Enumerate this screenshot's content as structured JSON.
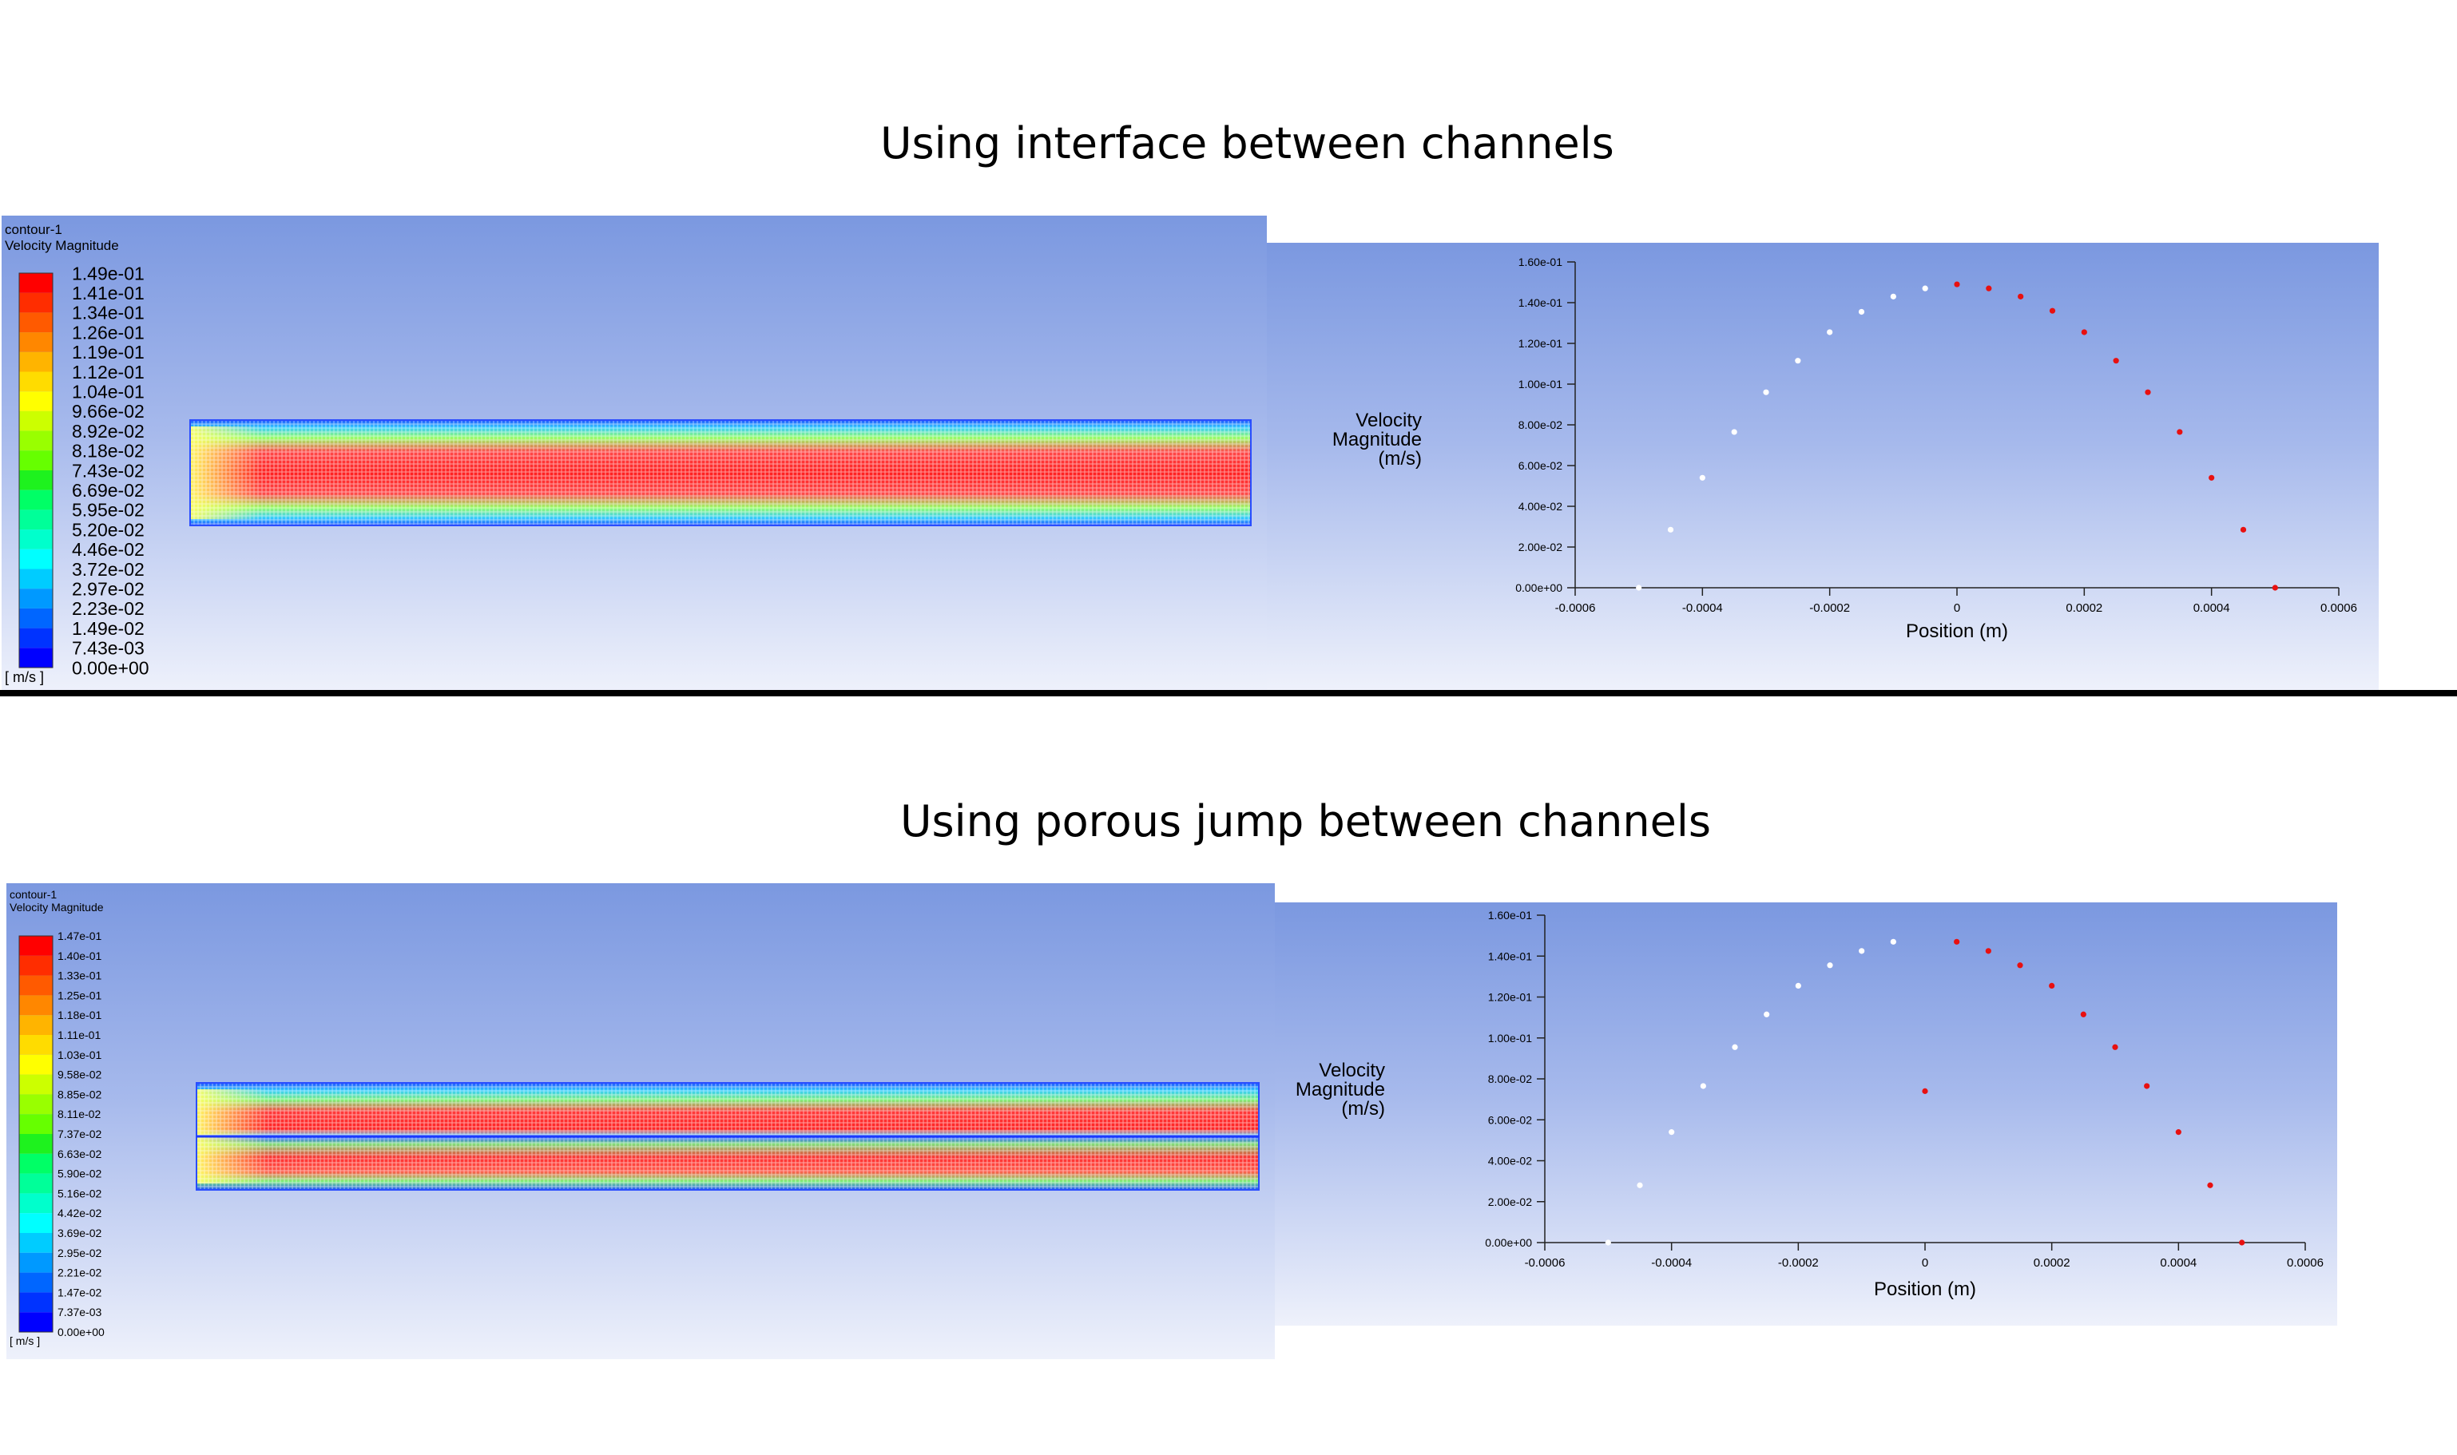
{
  "sections": [
    {
      "title": "Using interface between channels",
      "contour": {
        "title": "contour-1",
        "variable": "Velocity Magnitude",
        "unit": "[ m/s ]",
        "levels": [
          "1.49e-01",
          "1.41e-01",
          "1.34e-01",
          "1.26e-01",
          "1.19e-01",
          "1.12e-01",
          "1.04e-01",
          "9.66e-02",
          "8.92e-02",
          "8.18e-02",
          "7.43e-02",
          "6.69e-02",
          "5.95e-02",
          "5.20e-02",
          "4.46e-02",
          "3.72e-02",
          "2.97e-02",
          "2.23e-02",
          "1.49e-02",
          "7.43e-03",
          "0.00e+00"
        ],
        "split_channel": false
      },
      "chart_data": {
        "type": "scatter",
        "xlabel": "Position (m)",
        "ylabel": "Velocity Magnitude (m/s)",
        "xlim": [
          -0.0006,
          0.0006
        ],
        "ylim": [
          0,
          0.16
        ],
        "x_ticks": [
          "-0.0006",
          "-0.0004",
          "-0.0002",
          "0",
          "0.0002",
          "0.0004",
          "0.0006"
        ],
        "y_ticks": [
          "0.00e+00",
          "2.00e-02",
          "4.00e-02",
          "6.00e-02",
          "8.00e-02",
          "1.00e-01",
          "1.20e-01",
          "1.40e-01",
          "1.60e-01"
        ],
        "series": [
          {
            "color": "#ffffff",
            "x": [
              -0.0005,
              -0.00045,
              -0.0004,
              -0.00035,
              -0.0003,
              -0.00025,
              -0.0002,
              -0.00015,
              -0.0001,
              -5e-05
            ],
            "y": [
              0.0,
              0.0285,
              0.054,
              0.0765,
              0.096,
              0.1115,
              0.1255,
              0.1355,
              0.143,
              0.147
            ]
          },
          {
            "color": "#e81010",
            "x": [
              0,
              5e-05,
              0.0001,
              0.00015,
              0.0002,
              0.00025,
              0.0003,
              0.00035,
              0.0004,
              0.00045,
              0.0005
            ],
            "y": [
              0.149,
              0.147,
              0.143,
              0.136,
              0.1255,
              0.1115,
              0.096,
              0.0765,
              0.054,
              0.0285,
              0.0
            ]
          }
        ]
      }
    },
    {
      "title": "Using porous jump between channels",
      "contour": {
        "title": "contour-1",
        "variable": "Velocity Magnitude",
        "unit": "[ m/s ]",
        "levels": [
          "1.47e-01",
          "1.40e-01",
          "1.33e-01",
          "1.25e-01",
          "1.18e-01",
          "1.11e-01",
          "1.03e-01",
          "9.58e-02",
          "8.85e-02",
          "8.11e-02",
          "7.37e-02",
          "6.63e-02",
          "5.90e-02",
          "5.16e-02",
          "4.42e-02",
          "3.69e-02",
          "2.95e-02",
          "2.21e-02",
          "1.47e-02",
          "7.37e-03",
          "0.00e+00"
        ],
        "split_channel": true
      },
      "chart_data": {
        "type": "scatter",
        "xlabel": "Position (m)",
        "ylabel": "Velocity Magnitude (m/s)",
        "xlim": [
          -0.0006,
          0.0006
        ],
        "ylim": [
          0,
          0.16
        ],
        "x_ticks": [
          "-0.0006",
          "-0.0004",
          "-0.0002",
          "0",
          "0.0002",
          "0.0004",
          "0.0006"
        ],
        "y_ticks": [
          "0.00e+00",
          "2.00e-02",
          "4.00e-02",
          "6.00e-02",
          "8.00e-02",
          "1.00e-01",
          "1.20e-01",
          "1.40e-01",
          "1.60e-01"
        ],
        "series": [
          {
            "color": "#ffffff",
            "x": [
              -0.0005,
              -0.00045,
              -0.0004,
              -0.00035,
              -0.0003,
              -0.00025,
              -0.0002,
              -0.00015,
              -0.0001,
              -5e-05
            ],
            "y": [
              0.0,
              0.028,
              0.054,
              0.0765,
              0.0955,
              0.1115,
              0.1255,
              0.1355,
              0.1425,
              0.147
            ]
          },
          {
            "color": "#e81010",
            "x": [
              0,
              5e-05,
              0.0001,
              0.00015,
              0.0002,
              0.00025,
              0.0003,
              0.00035,
              0.0004,
              0.00045,
              0.0005
            ],
            "y": [
              0.074,
              0.147,
              0.1425,
              0.1355,
              0.1255,
              0.1115,
              0.0955,
              0.0765,
              0.054,
              0.028,
              0.0
            ]
          }
        ]
      }
    }
  ]
}
